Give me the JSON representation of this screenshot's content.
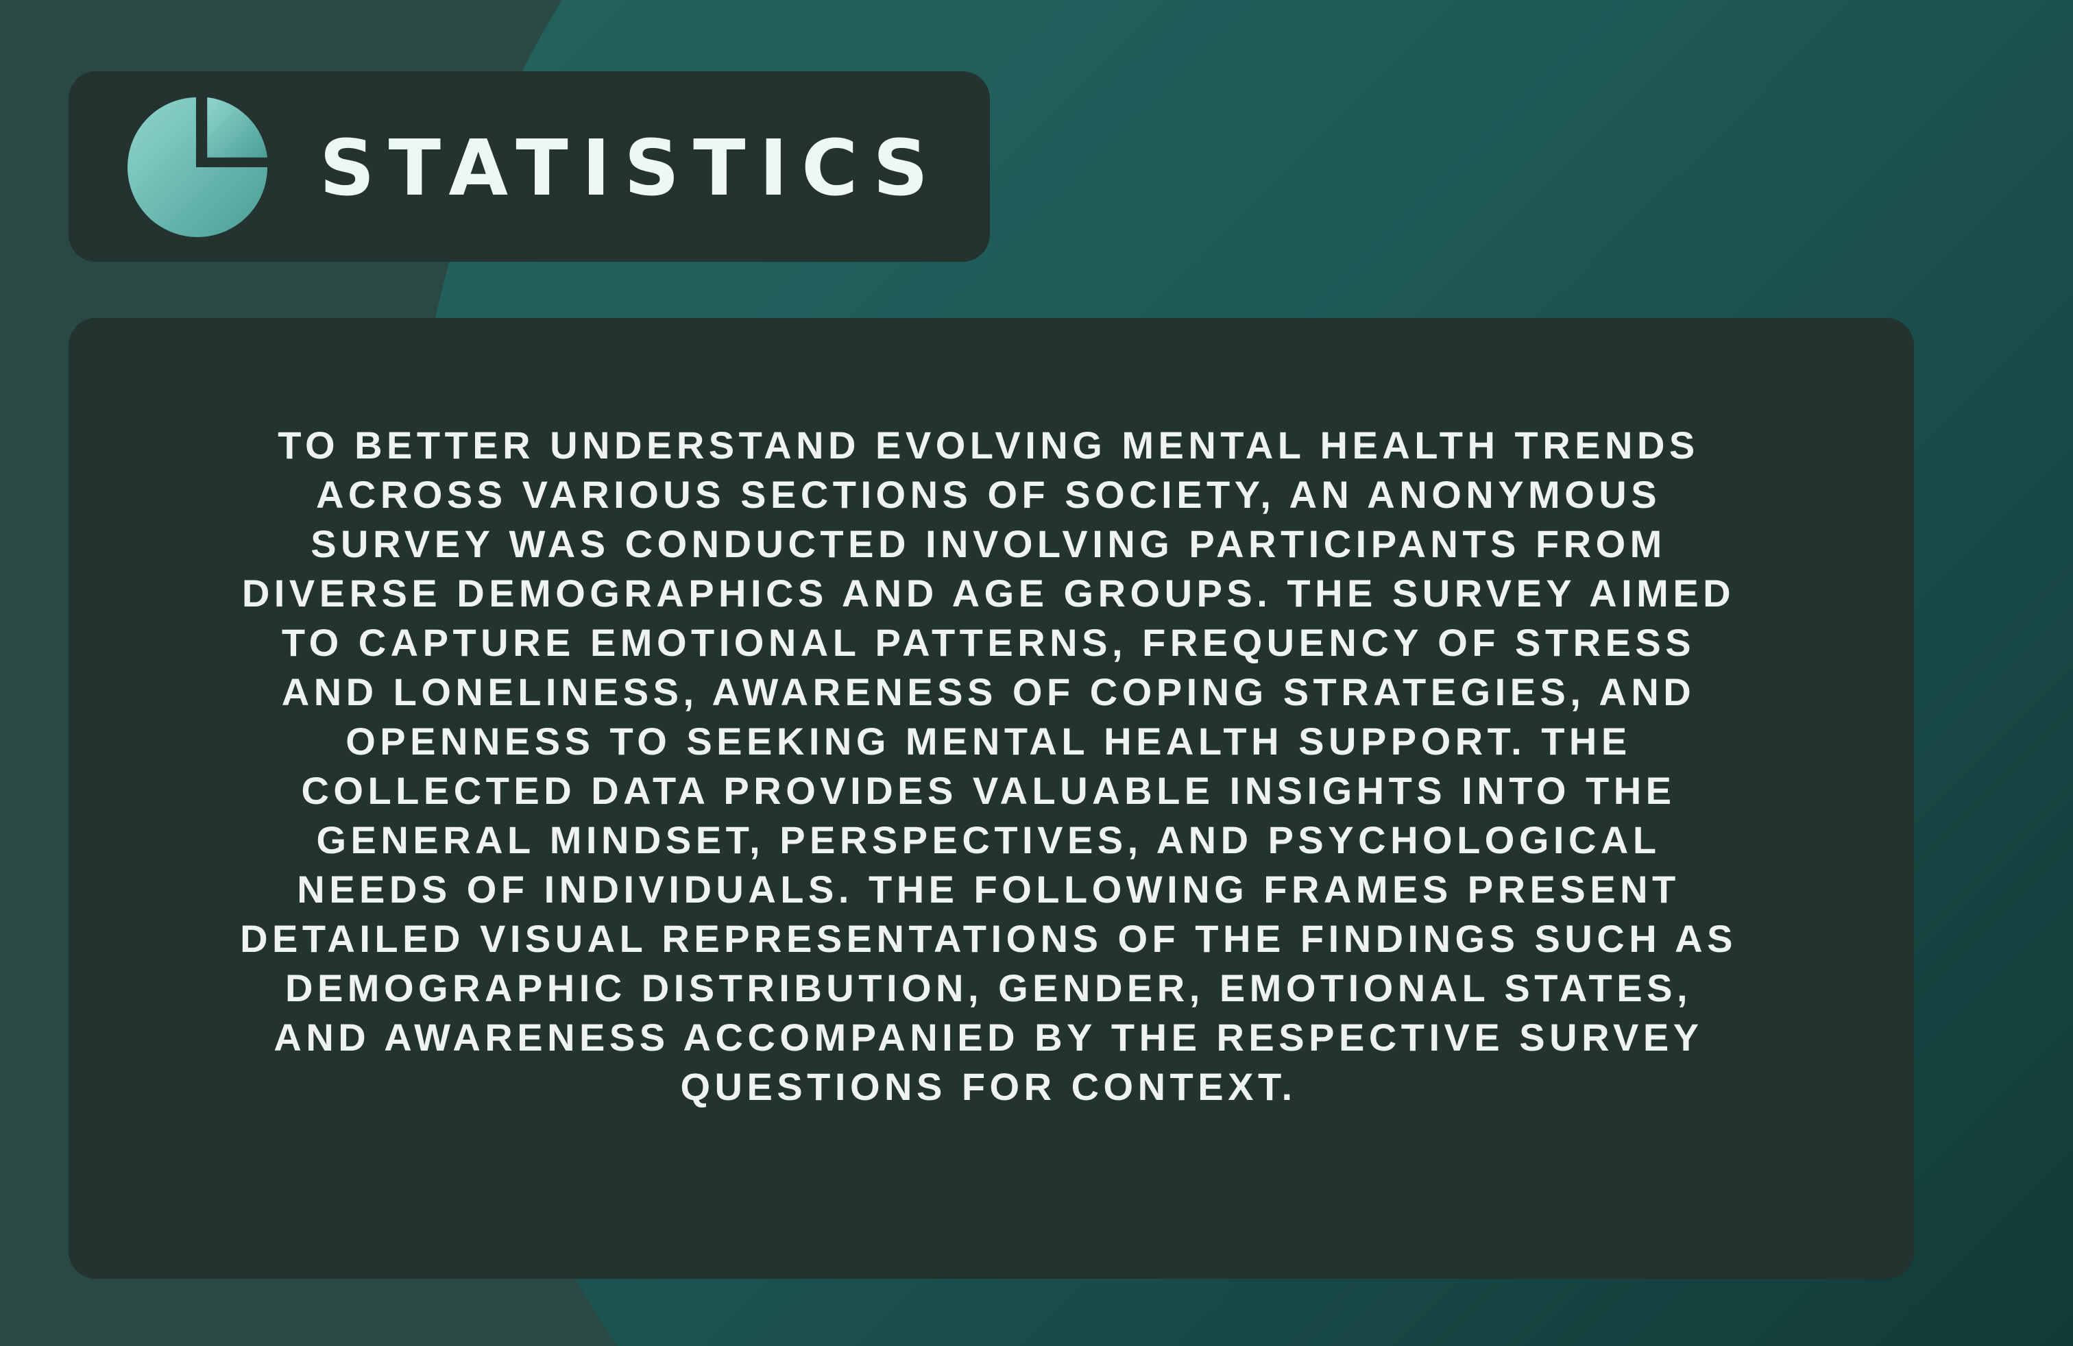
{
  "header": {
    "icon": "pie-chart-icon",
    "title": "STATISTICS"
  },
  "content": {
    "paragraph": "TO BETTER UNDERSTAND EVOLVING MENTAL HEALTH TRENDS ACROSS VARIOUS SECTIONS OF SOCIETY, AN ANONYMOUS SURVEY WAS CONDUCTED INVOLVING PARTICIPANTS FROM DIVERSE DEMOGRAPHICS AND AGE GROUPS. THE SURVEY AIMED TO CAPTURE EMOTIONAL PATTERNS, FREQUENCY OF STRESS AND LONELINESS, AWARENESS OF COPING STRATEGIES, AND OPENNESS TO SEEKING MENTAL HEALTH SUPPORT. THE COLLECTED DATA PROVIDES VALUABLE INSIGHTS INTO THE GENERAL MINDSET, PERSPECTIVES, AND PSYCHOLOGICAL NEEDS OF INDIVIDUALS. THE FOLLOWING FRAMES PRESENT DETAILED VISUAL REPRESENTATIONS OF THE FINDINGS SUCH AS DEMOGRAPHIC DISTRIBUTION, GENDER, EMOTIONAL STATES, AND AWARENESS ACCOMPANIED BY THE RESPECTIVE SURVEY QUESTIONS FOR CONTEXT."
  },
  "colors": {
    "background_light": "#266560",
    "background_dark": "#123a38",
    "card": "#24332f",
    "icon_light": "#8fd6cd",
    "icon_dark": "#4a9e96",
    "text": "#eef3f2"
  }
}
